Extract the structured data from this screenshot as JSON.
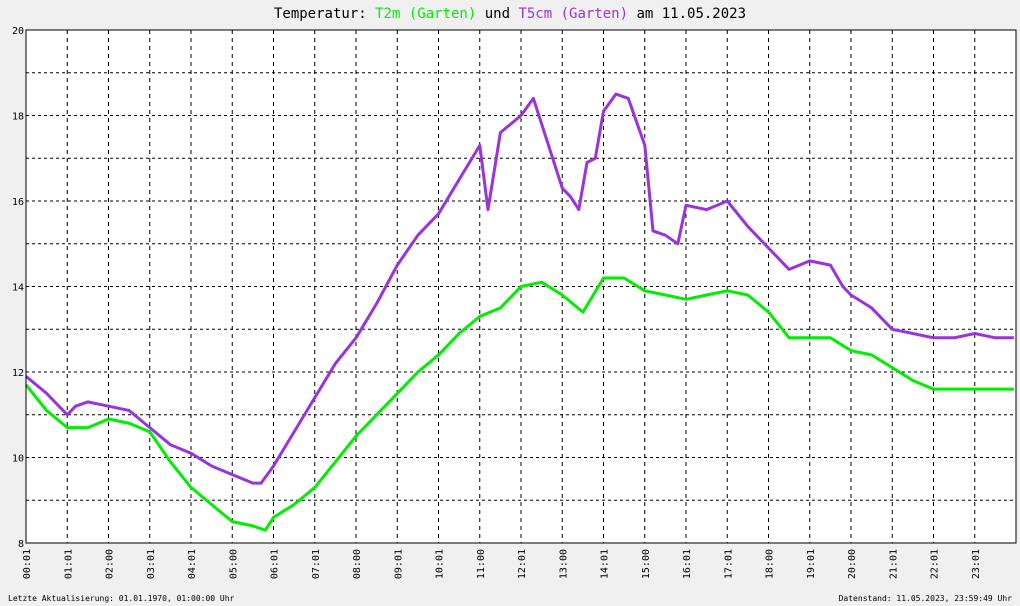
{
  "colors": {
    "background": "#f0f0f0",
    "plot_background": "#ffffff",
    "t2m": "#00ee00",
    "t5cm": "#9933dd",
    "text": "#000000"
  },
  "title": {
    "prefix": "Temperatur: ",
    "series1": "T2m (Garten)",
    "conj": " und ",
    "series2": "T5cm (Garten)",
    "suffix": " am 11.05.2023"
  },
  "footer": {
    "left": "Letzte Aktualisierung: 01.01.1970, 01:00:00 Uhr",
    "right": "Datenstand: 11.05.2023, 23:59:49 Uhr"
  },
  "chart_data": {
    "type": "line",
    "title": "Temperatur: T2m (Garten) und T5cm (Garten) am 11.05.2023",
    "xlabel": "",
    "ylabel": "",
    "xlim": [
      0,
      24
    ],
    "ylim": [
      8,
      20
    ],
    "grid": true,
    "x_ticks": [
      "00:01",
      "01:01",
      "02:00",
      "03:01",
      "04:01",
      "05:00",
      "06:01",
      "07:01",
      "08:00",
      "09:01",
      "10:01",
      "11:00",
      "12:01",
      "13:00",
      "14:01",
      "15:00",
      "16:01",
      "17:01",
      "18:00",
      "19:01",
      "20:00",
      "21:01",
      "22:01",
      "23:01"
    ],
    "y_ticks": [
      "8",
      "10",
      "12",
      "14",
      "16",
      "18",
      "20"
    ],
    "series": [
      {
        "name": "T2m (Garten)",
        "x": [
          0.0,
          0.5,
          1.0,
          1.5,
          2.0,
          2.5,
          3.0,
          3.5,
          4.0,
          4.5,
          5.0,
          5.5,
          5.8,
          6.0,
          6.5,
          7.0,
          7.5,
          8.0,
          8.5,
          9.0,
          9.5,
          10.0,
          10.5,
          11.0,
          11.5,
          12.0,
          12.5,
          13.0,
          13.5,
          14.0,
          14.5,
          15.0,
          15.5,
          16.0,
          16.5,
          17.0,
          17.5,
          18.0,
          18.5,
          19.0,
          19.5,
          20.0,
          20.5,
          21.0,
          21.5,
          22.0,
          22.5,
          23.0,
          23.5,
          23.95
        ],
        "y": [
          11.7,
          11.1,
          10.7,
          10.7,
          10.9,
          10.8,
          10.6,
          9.9,
          9.3,
          8.9,
          8.5,
          8.4,
          8.3,
          8.6,
          8.9,
          9.3,
          9.9,
          10.5,
          11.0,
          11.5,
          12.0,
          12.4,
          12.9,
          13.3,
          13.5,
          14.0,
          14.1,
          13.8,
          13.4,
          14.2,
          14.2,
          13.9,
          13.8,
          13.7,
          13.8,
          13.9,
          13.8,
          13.4,
          12.8,
          12.8,
          12.8,
          12.5,
          12.4,
          12.1,
          11.8,
          11.6,
          11.6,
          11.6,
          11.6,
          11.6
        ]
      },
      {
        "name": "T5cm (Garten)",
        "x": [
          0.0,
          0.5,
          1.0,
          1.2,
          1.5,
          2.0,
          2.5,
          3.0,
          3.5,
          4.0,
          4.5,
          5.0,
          5.5,
          5.7,
          6.0,
          6.5,
          7.0,
          7.5,
          8.0,
          8.5,
          9.0,
          9.5,
          10.0,
          10.5,
          11.0,
          11.2,
          11.5,
          12.0,
          12.3,
          12.7,
          13.0,
          13.2,
          13.4,
          13.6,
          13.8,
          14.0,
          14.3,
          14.6,
          15.0,
          15.2,
          15.5,
          15.8,
          16.0,
          16.5,
          17.0,
          17.5,
          18.0,
          18.5,
          19.0,
          19.5,
          19.8,
          20.0,
          20.5,
          21.0,
          21.5,
          22.0,
          22.5,
          23.0,
          23.5,
          23.95
        ],
        "y": [
          11.9,
          11.5,
          11.0,
          11.2,
          11.3,
          11.2,
          11.1,
          10.7,
          10.3,
          10.1,
          9.8,
          9.6,
          9.4,
          9.4,
          9.8,
          10.6,
          11.4,
          12.2,
          12.8,
          13.6,
          14.5,
          15.2,
          15.7,
          16.5,
          17.3,
          15.8,
          17.6,
          18.0,
          18.4,
          17.2,
          16.3,
          16.1,
          15.8,
          16.9,
          17.0,
          18.1,
          18.5,
          18.4,
          17.3,
          15.3,
          15.2,
          15.0,
          15.9,
          15.8,
          16.0,
          15.4,
          14.9,
          14.4,
          14.6,
          14.5,
          14.0,
          13.8,
          13.5,
          13.0,
          12.9,
          12.8,
          12.8,
          12.9,
          12.8,
          12.8
        ]
      }
    ]
  }
}
